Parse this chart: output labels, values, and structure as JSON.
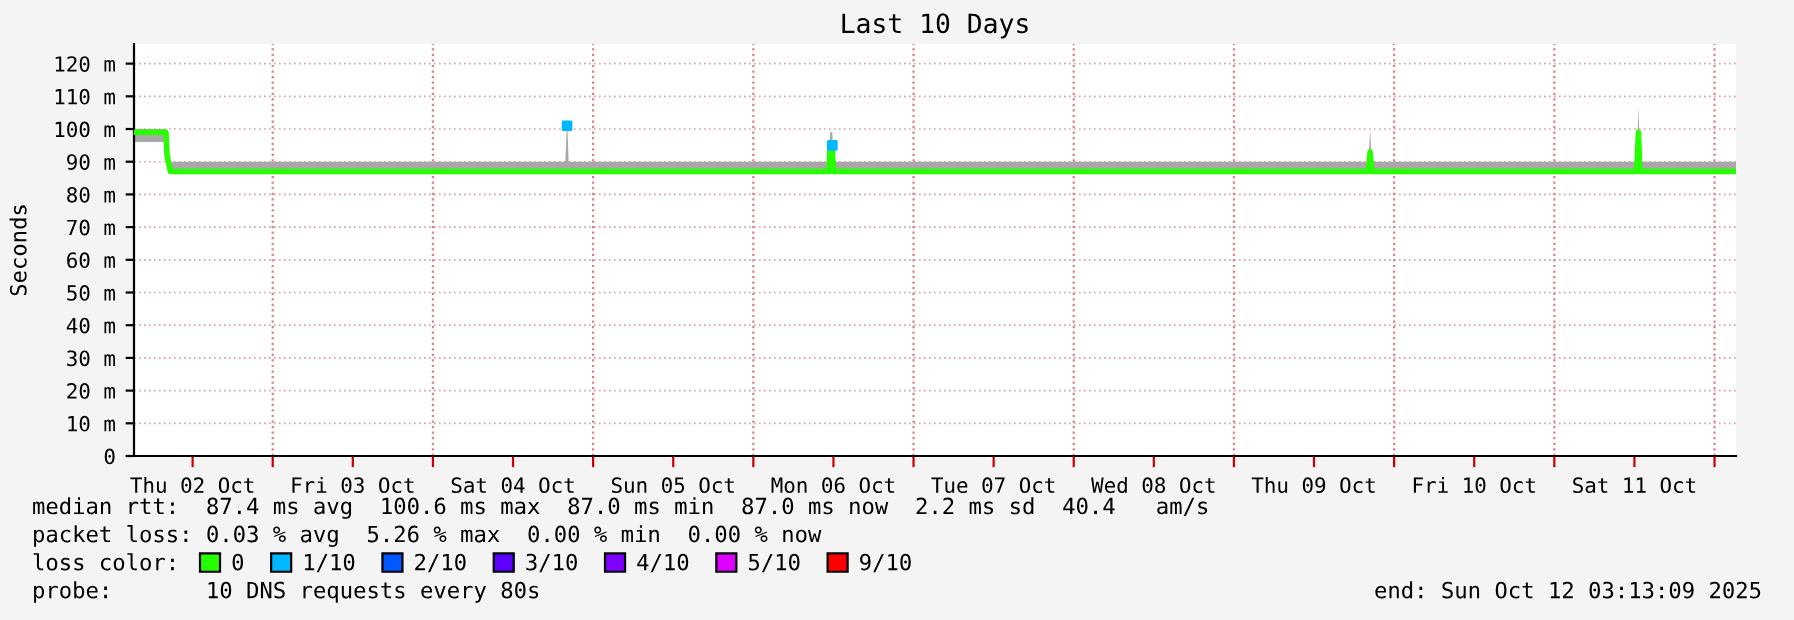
{
  "chart_data": {
    "type": "line",
    "title": "Last 10 Days",
    "ylabel": "Seconds",
    "xlim": [
      "2025-10-02T03:13",
      "2025-10-12T03:13"
    ],
    "xticks": [
      {
        "value": "2025-10-02T12:00",
        "label": "Thu 02 Oct"
      },
      {
        "value": "2025-10-03T00:00",
        "label": null
      },
      {
        "value": "2025-10-03T12:00",
        "label": "Fri 03 Oct"
      },
      {
        "value": "2025-10-04T00:00",
        "label": null
      },
      {
        "value": "2025-10-04T12:00",
        "label": "Sat 04 Oct"
      },
      {
        "value": "2025-10-05T00:00",
        "label": null
      },
      {
        "value": "2025-10-05T12:00",
        "label": "Sun 05 Oct"
      },
      {
        "value": "2025-10-06T00:00",
        "label": null
      },
      {
        "value": "2025-10-06T12:00",
        "label": "Mon 06 Oct"
      },
      {
        "value": "2025-10-07T00:00",
        "label": null
      },
      {
        "value": "2025-10-07T12:00",
        "label": "Tue 07 Oct"
      },
      {
        "value": "2025-10-08T00:00",
        "label": null
      },
      {
        "value": "2025-10-08T12:00",
        "label": "Wed 08 Oct"
      },
      {
        "value": "2025-10-09T00:00",
        "label": null
      },
      {
        "value": "2025-10-09T12:00",
        "label": "Thu 09 Oct"
      },
      {
        "value": "2025-10-10T00:00",
        "label": null
      },
      {
        "value": "2025-10-10T12:00",
        "label": "Fri 10 Oct"
      },
      {
        "value": "2025-10-11T00:00",
        "label": null
      },
      {
        "value": "2025-10-11T12:00",
        "label": "Sat 11 Oct"
      },
      {
        "value": "2025-10-12T00:00",
        "label": null
      }
    ],
    "ylim": [
      0,
      126
    ],
    "yticks": [
      0,
      {
        "value": 10,
        "label": "10 m"
      },
      {
        "value": 20,
        "label": "20 m"
      },
      {
        "value": 30,
        "label": "30 m"
      },
      {
        "value": 40,
        "label": "40 m"
      },
      {
        "value": 50,
        "label": "50 m"
      },
      {
        "value": 60,
        "label": "60 m"
      },
      {
        "value": 70,
        "label": "70 m"
      },
      {
        "value": 80,
        "label": "80 m"
      },
      {
        "value": 90,
        "label": "90 m"
      },
      {
        "value": 100,
        "label": "100 m"
      },
      {
        "value": 110,
        "label": "110 m"
      },
      {
        "value": 120,
        "label": "120 m"
      }
    ],
    "grid": true,
    "legend": "bottom",
    "series": [
      {
        "name": "0",
        "color": "#26ff00",
        "x": [
          "2025-10-02T03:13",
          "2025-10-02T08:00",
          "2025-10-02T08:10",
          "2025-10-02T08:40",
          "2025-10-02T20:00",
          "2025-10-03T08:00",
          "2025-10-03T20:00",
          "2025-10-04T08:00",
          "2025-10-04T19:50",
          "2025-10-04T20:06",
          "2025-10-04T20:20",
          "2025-10-05T08:00",
          "2025-10-05T20:00",
          "2025-10-06T08:00",
          "2025-10-06T11:20",
          "2025-10-06T11:30",
          "2025-10-06T11:50",
          "2025-10-06T12:00",
          "2025-10-06T20:00",
          "2025-10-07T08:00",
          "2025-10-07T20:00",
          "2025-10-08T08:00",
          "2025-10-08T20:00",
          "2025-10-09T08:00",
          "2025-10-09T20:10",
          "2025-10-09T20:24",
          "2025-10-09T20:40",
          "2025-10-10T08:00",
          "2025-10-10T20:00",
          "2025-10-11T08:00",
          "2025-10-11T12:20",
          "2025-10-11T12:36",
          "2025-10-11T12:50",
          "2025-10-11T20:00",
          "2025-10-12T03:13"
        ],
        "values": [
          99,
          99,
          92,
          87,
          87,
          87,
          87,
          87,
          87,
          87,
          87,
          87,
          87,
          87,
          87,
          94,
          94,
          87,
          87,
          87,
          87,
          87,
          87,
          87,
          87,
          93,
          87,
          87,
          87,
          87,
          87,
          99,
          87,
          87,
          87
        ],
        "lower": [
          96,
          96,
          90,
          87,
          87,
          87,
          87,
          87,
          87,
          87,
          87,
          87,
          87,
          87,
          87,
          90,
          90,
          87,
          87,
          87,
          87,
          87,
          87,
          87,
          87,
          88,
          87,
          87,
          87,
          87,
          87,
          88,
          87,
          87,
          87
        ],
        "upper": [
          100,
          100,
          94,
          90,
          90,
          90,
          90,
          90,
          90,
          103,
          90,
          90,
          90,
          90,
          90,
          99,
          99,
          90,
          90,
          90,
          90,
          90,
          90,
          90,
          90,
          100,
          90,
          90,
          90,
          90,
          90,
          107,
          90,
          90,
          90
        ]
      },
      {
        "name": "1/10",
        "color": "#00b8ff",
        "type": "scatter",
        "x": [
          "2025-10-04T20:06",
          "2025-10-06T11:50"
        ],
        "values": [
          101,
          95
        ]
      },
      {
        "name": "2/10",
        "color": "#0059ff",
        "type": "scatter"
      },
      {
        "name": "3/10",
        "color": "#5e00ff",
        "type": "scatter"
      },
      {
        "name": "4/10",
        "color": "#7e00ff",
        "type": "scatter"
      },
      {
        "name": "5/10",
        "color": "#dd00ff",
        "type": "scatter"
      },
      {
        "name": "9/10",
        "color": "#ff0000",
        "type": "scatter"
      }
    ],
    "annotations": [
      "median rtt:  87.4 ms avg  100.6 ms max  87.0 ms min  87.0 ms now  2.2 ms sd  40.4   am/s",
      "packet loss: 0.03 % avg  5.26 % max  0.00 % min  0.00 % now",
      "loss color:",
      "probe:       10 DNS requests every 80s",
      "end: Sun Oct 12 03:13:09 2025"
    ]
  }
}
